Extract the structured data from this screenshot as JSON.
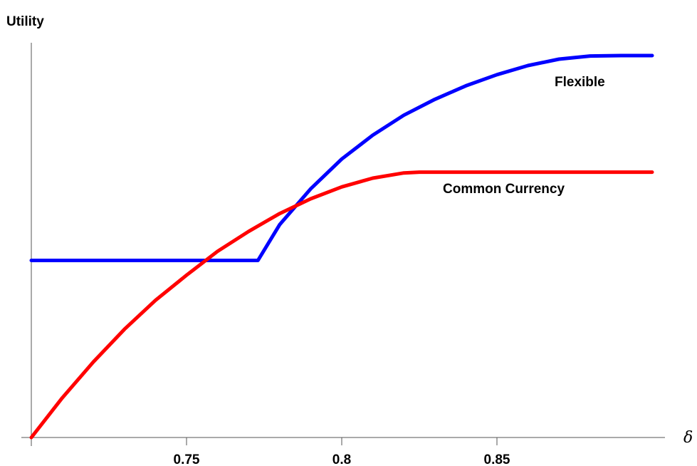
{
  "chart_data": {
    "type": "line",
    "title": "",
    "xlabel": "δ",
    "ylabel": "Utility",
    "xlim": [
      0.7,
      0.9
    ],
    "ylim": [
      0,
      1
    ],
    "grid": false,
    "legend": "none",
    "xticks": [
      {
        "value": 0.75,
        "label": "0.75"
      },
      {
        "value": 0.8,
        "label": "0.8"
      },
      {
        "value": 0.85,
        "label": "0.85"
      }
    ],
    "series": [
      {
        "name": "Flexible",
        "color": "#0000ff",
        "x": [
          0.7,
          0.773,
          0.78,
          0.79,
          0.8,
          0.81,
          0.82,
          0.83,
          0.84,
          0.85,
          0.86,
          0.87,
          0.88,
          0.89,
          0.9
        ],
        "y": [
          0.445,
          0.445,
          0.535,
          0.625,
          0.7,
          0.76,
          0.81,
          0.85,
          0.884,
          0.912,
          0.935,
          0.951,
          0.959,
          0.96,
          0.96
        ]
      },
      {
        "name": "Common Currency",
        "color": "#ff0000",
        "x": [
          0.7,
          0.71,
          0.72,
          0.73,
          0.74,
          0.75,
          0.76,
          0.77,
          0.78,
          0.79,
          0.8,
          0.81,
          0.82,
          0.825,
          0.9
        ],
        "y": [
          0.0,
          0.1,
          0.19,
          0.272,
          0.345,
          0.408,
          0.468,
          0.518,
          0.563,
          0.6,
          0.63,
          0.652,
          0.665,
          0.667,
          0.667
        ]
      }
    ],
    "annotations": [
      {
        "text": "Flexible",
        "series": 0
      },
      {
        "text": "Common Currency",
        "series": 1
      }
    ]
  }
}
